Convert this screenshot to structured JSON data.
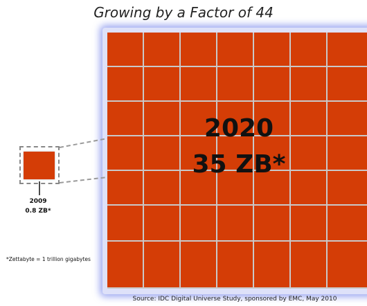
{
  "title": "Growing by a Factor of 44",
  "big": {
    "year": "2020",
    "size": "35 ZB*"
  },
  "small": {
    "year": "2009",
    "size": "0.8 ZB*"
  },
  "footnote": "*Zettabyte = 1 trillion gigabytes",
  "source": "Source: IDC Digital Universe Study, sponsored by EMC, May 2010",
  "colors": {
    "block": "#d43d06",
    "glow": "#5064e6",
    "gridline": "#c9c9c9"
  }
}
